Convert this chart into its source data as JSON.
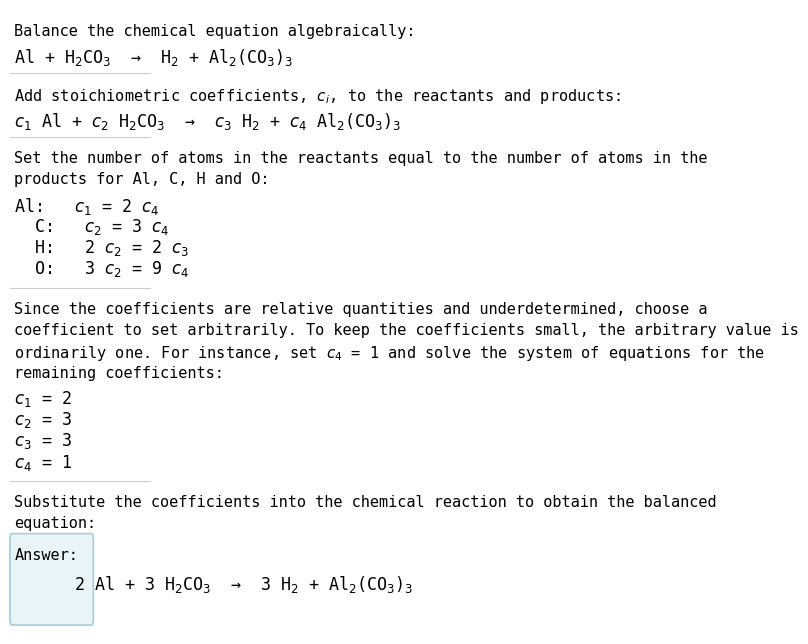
{
  "title": "Balance the chemical equation algebraically:",
  "line1": "Al + H$_2$CO$_3$  →  H$_2$ + Al$_2$(CO$_3$)$_3$",
  "section2_header": "Add stoichiometric coefficients, $c_i$, to the reactants and products:",
  "section2_line": "$c_1$ Al + $c_2$ H$_2$CO$_3$  →  $c_3$ H$_2$ + $c_4$ Al$_2$(CO$_3$)$_3$",
  "section3_header_lines": [
    "Set the number of atoms in the reactants equal to the number of atoms in the",
    "products for Al, C, H and O:"
  ],
  "section3_lines": [
    "Al:   $c_1$ = 2 $c_4$",
    "  C:   $c_2$ = 3 $c_4$",
    "  H:   2 $c_2$ = 2 $c_3$",
    "  O:   3 $c_2$ = 9 $c_4$"
  ],
  "section4_header_lines": [
    "Since the coefficients are relative quantities and underdetermined, choose a",
    "coefficient to set arbitrarily. To keep the coefficients small, the arbitrary value is",
    "ordinarily one. For instance, set $c_4$ = 1 and solve the system of equations for the",
    "remaining coefficients:"
  ],
  "section4_lines": [
    "$c_1$ = 2",
    "$c_2$ = 3",
    "$c_3$ = 3",
    "$c_4$ = 1"
  ],
  "section5_header_lines": [
    "Substitute the coefficients into the chemical reaction to obtain the balanced",
    "equation:"
  ],
  "answer_label": "Answer:",
  "answer_line": "      2 Al + 3 H$_2$CO$_3$  →  3 H$_2$ + Al$_2$(CO$_3$)$_3$",
  "bg_color": "#ffffff",
  "text_color": "#000000",
  "answer_box_facecolor": "#e8f4f8",
  "answer_box_edgecolor": "#a8ccd8",
  "divider_color": "#cccccc",
  "font_size": 11,
  "font_size_eq": 12
}
